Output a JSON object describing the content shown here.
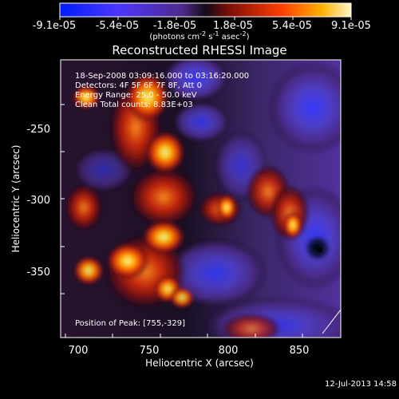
{
  "colorbar": {
    "labels": [
      "-9.1e-05",
      "-5.4e-05",
      "-1.8e-05",
      "1.8e-05",
      "5.4e-05",
      "9.1e-05"
    ],
    "units": "(photons cm",
    "units_sup1": "-2",
    "units_mid": " s",
    "units_sup2": "-1",
    "units_end": " asec",
    "units_sup3": "-2",
    "units_close": ")"
  },
  "plot": {
    "title": "Reconstructed RHESSI Image",
    "xlabel": "Heliocentric X (arcsec)",
    "ylabel": "Heliocentric Y (arcsec)",
    "x_ticks": [
      "700",
      "750",
      "800",
      "850"
    ],
    "y_ticks": [
      "-250",
      "-300",
      "-350"
    ]
  },
  "annotations": {
    "time": "18-Sep-2008 03:09:16.000 to 03:16:20.000",
    "detectors": "Detectors: 4F 5F 6F 7F 8F, Att 0",
    "energy": "Energy Range: 25.0 - 50.0 keV",
    "algorithm": "Clean     Total counts: 8.83E+03",
    "peak": "Position of Peak: [755,-329]"
  },
  "footer": {
    "date": "12-Jul-2013 14:58"
  },
  "colors": {
    "background": "#000000",
    "text": "#ffffff",
    "low": "#001cff",
    "mid_low": "#5b2cc8",
    "mid": "#1a0d24",
    "mid_high": "#b51700",
    "high": "#ffd100"
  }
}
